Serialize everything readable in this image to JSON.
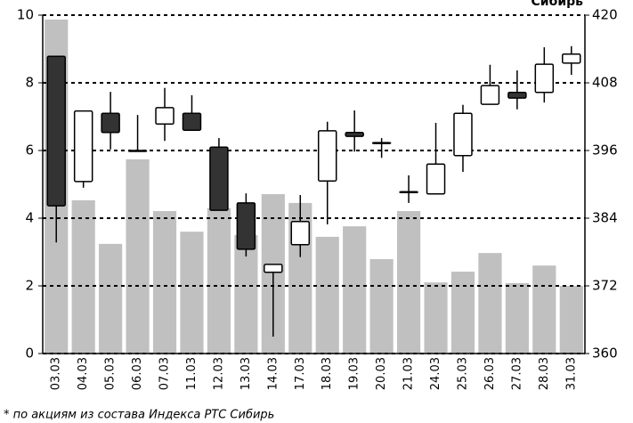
{
  "chart_data": {
    "type": "candlestick",
    "title": "Сибирь",
    "note": "* по акциям из состава Индекса РТС Сибирь",
    "categories": [
      "03.03",
      "04.03",
      "05.03",
      "06.03",
      "07.03",
      "11.03",
      "12.03",
      "13.03",
      "14.03",
      "17.03",
      "18.03",
      "19.03",
      "20.03",
      "21.03",
      "24.03",
      "25.03",
      "26.03",
      "27.03",
      "28.03",
      "31.03"
    ],
    "ylim": [
      0,
      10
    ],
    "yticks": [
      0,
      2,
      4,
      6,
      8,
      10
    ],
    "y2lim": [
      360,
      420
    ],
    "y2ticks": [
      360,
      372,
      384,
      396,
      408,
      420
    ],
    "grid": true,
    "series": [
      {
        "type": "bar",
        "color": "#c0c0c0",
        "values": [
          9.87,
          4.53,
          3.24,
          5.74,
          4.21,
          3.6,
          4.3,
          3.5,
          4.71,
          4.45,
          3.45,
          3.76,
          2.79,
          4.21,
          2.1,
          2.42,
          2.97,
          2.08,
          2.6,
          2.0
        ]
      },
      {
        "type": "candlestick",
        "axis": "y2",
        "up_color": "#ffffff",
        "down_color": "#333333",
        "open": [
          412.7,
          390.5,
          402.6,
          396.0,
          400.7,
          402.6,
          396.6,
          386.7,
          374.4,
          379.3,
          390.6,
          399.2,
          397.4,
          388.7,
          388.3,
          395.1,
          404.2,
          406.3,
          406.3,
          411.5
        ],
        "high": [
          412.7,
          403.0,
          406.4,
          402.3,
          407.1,
          405.8,
          398.2,
          388.4,
          375.8,
          388.1,
          401.1,
          403.1,
          398.2,
          391.6,
          400.9,
          404.1,
          411.2,
          410.2,
          414.3,
          414.5
        ],
        "low": [
          379.7,
          389.4,
          396.2,
          395.8,
          397.7,
          399.6,
          385.4,
          377.2,
          363.0,
          377.1,
          382.9,
          395.8,
          394.7,
          386.7,
          388.3,
          392.2,
          404.2,
          403.3,
          404.5,
          409.4
        ],
        "close": [
          386.2,
          403.0,
          399.2,
          396.0,
          403.6,
          399.6,
          385.4,
          378.5,
          375.8,
          383.4,
          399.5,
          398.5,
          397.4,
          388.7,
          393.6,
          402.6,
          407.5,
          405.3,
          411.3,
          413.1
        ]
      }
    ]
  }
}
